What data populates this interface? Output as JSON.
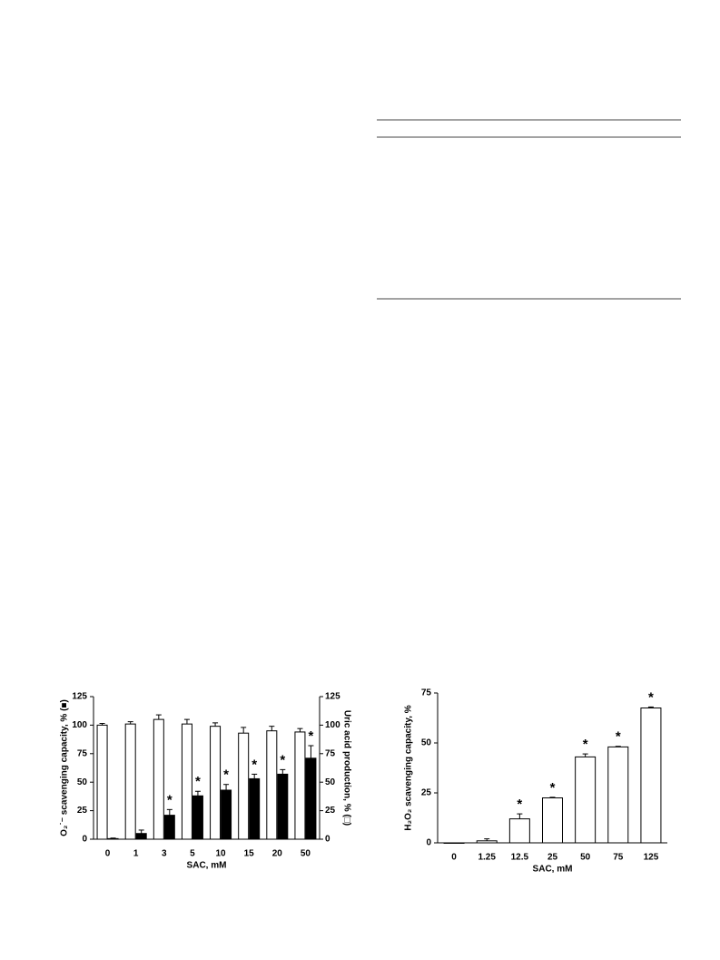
{
  "chart_data": [
    {
      "type": "bar",
      "ylabel": "O₂˙⁻ scavenging capacity, % (■)",
      "y2label": "Uric acid production, % (□)",
      "xlabel": "SAC, mM",
      "categories": [
        "0",
        "1",
        "3",
        "5",
        "10",
        "15",
        "20",
        "50"
      ],
      "series": [
        {
          "color": "#ffffff",
          "axis": "y2",
          "values": [
            100,
            101,
            105,
            101,
            99,
            93,
            95,
            94
          ],
          "errors": [
            1.5,
            2,
            4,
            4,
            3,
            5,
            4,
            3
          ]
        },
        {
          "color": "#000000",
          "axis": "y",
          "values": [
            0.5,
            5,
            21,
            38,
            43,
            53,
            57,
            71
          ],
          "errors": [
            0.5,
            3,
            5,
            4,
            5,
            4,
            4,
            11
          ],
          "annotations": [
            null,
            null,
            "*",
            "*",
            "*",
            "*",
            "*",
            "*"
          ]
        }
      ],
      "ylim": [
        0,
        125
      ],
      "yticks": [
        0,
        25,
        50,
        75,
        100,
        125
      ],
      "y2lim": [
        0,
        125
      ],
      "y2ticks": [
        0,
        25,
        50,
        75,
        100,
        125
      ]
    },
    {
      "type": "bar",
      "ylabel": "H₂O₂ scavenging capacity, %",
      "xlabel": "SAC, mM",
      "categories": [
        "0",
        "1.25",
        "12.5",
        "25",
        "50",
        "75",
        "125"
      ],
      "series": [
        {
          "color": "#ffffff",
          "axis": "y",
          "values": [
            0,
            1,
            12,
            22.5,
            43,
            48,
            67.5
          ],
          "errors": [
            0,
            1,
            2.5,
            0.3,
            1.5,
            0.3,
            0.5
          ],
          "annotations": [
            null,
            null,
            "*",
            "*",
            "*",
            "*",
            "*"
          ]
        }
      ],
      "ylim": [
        0,
        75
      ],
      "yticks": [
        0,
        25,
        50,
        75
      ]
    }
  ]
}
